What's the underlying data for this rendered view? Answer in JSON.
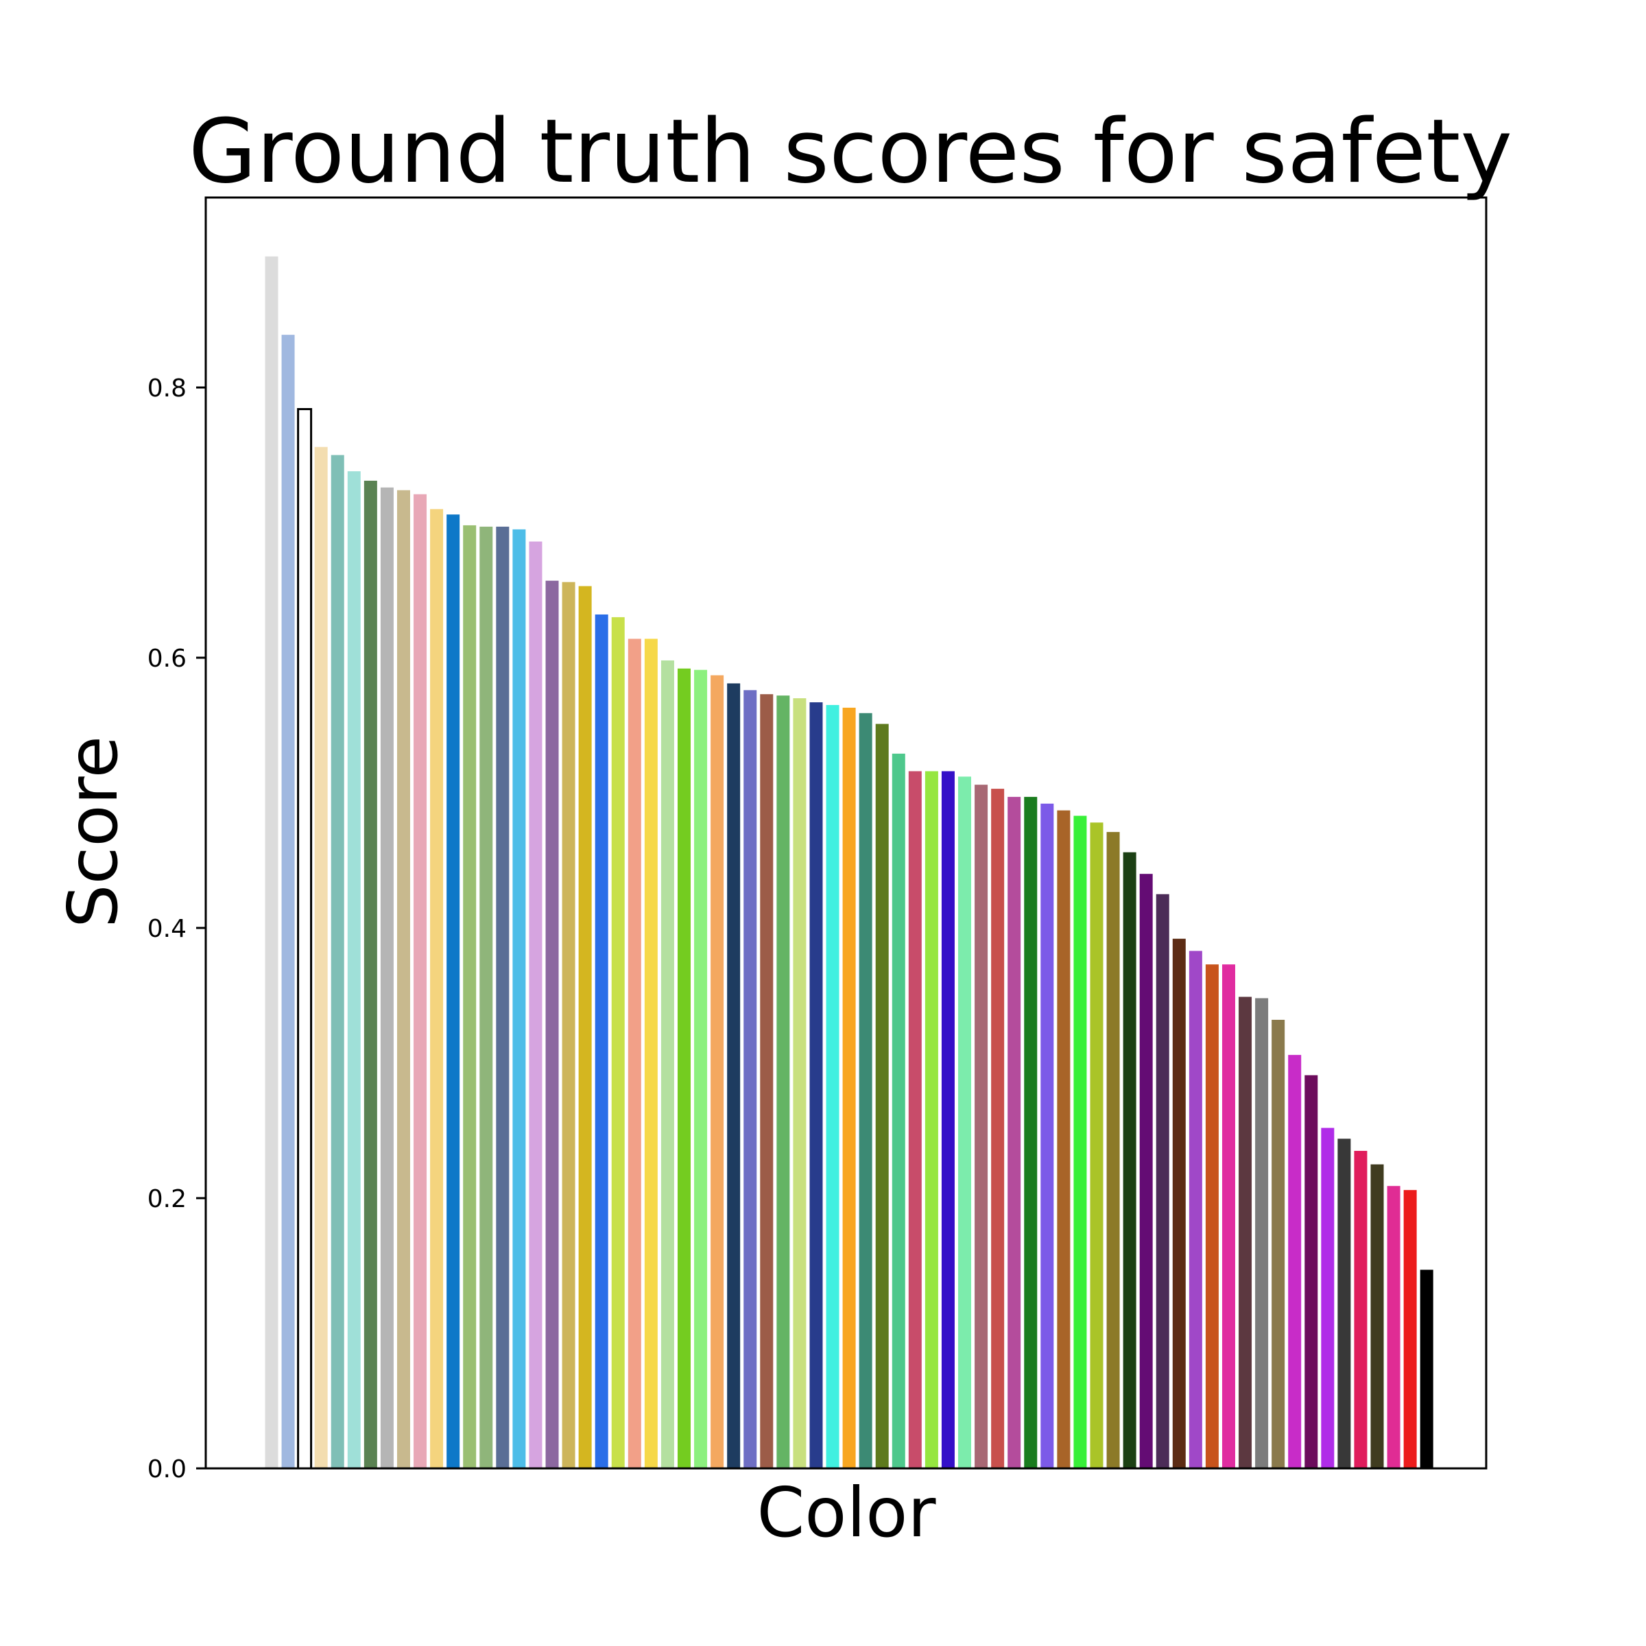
{
  "chart_data": {
    "type": "bar",
    "title": "Ground truth scores for safety",
    "xlabel": "Color",
    "ylabel": "Score",
    "ylim": [
      0,
      0.94
    ],
    "yticks": [
      "0.0",
      "0.2",
      "0.4",
      "0.6",
      "0.8"
    ],
    "grid": false,
    "legend": "none",
    "values": [
      0.897,
      0.839,
      0.784,
      0.756,
      0.75,
      0.738,
      0.731,
      0.726,
      0.724,
      0.721,
      0.71,
      0.706,
      0.698,
      0.697,
      0.697,
      0.695,
      0.686,
      0.657,
      0.656,
      0.653,
      0.632,
      0.63,
      0.614,
      0.614,
      0.598,
      0.592,
      0.591,
      0.587,
      0.581,
      0.576,
      0.573,
      0.572,
      0.57,
      0.567,
      0.565,
      0.563,
      0.559,
      0.551,
      0.529,
      0.516,
      0.516,
      0.516,
      0.512,
      0.506,
      0.503,
      0.497,
      0.497,
      0.492,
      0.487,
      0.483,
      0.478,
      0.471,
      0.456,
      0.44,
      0.425,
      0.392,
      0.383,
      0.373,
      0.373,
      0.349,
      0.348,
      0.332,
      0.306,
      0.291,
      0.252,
      0.244,
      0.235,
      0.225,
      0.209,
      0.206,
      0.147
    ],
    "colors": [
      "#dcdcdc",
      "#a0b8e0",
      "#ffffff",
      "#f3ddb0",
      "#7fbfb6",
      "#9fe0d8",
      "#5a8252",
      "#b5b5b5",
      "#c8b98e",
      "#e8a8b6",
      "#f4d47e",
      "#0e78c8",
      "#9abf72",
      "#8fb57a",
      "#5a6e96",
      "#4dbde8",
      "#d6a4e0",
      "#8c68a0",
      "#cdb55a",
      "#d4b620",
      "#2a6ee8",
      "#c8e04a",
      "#f2a088",
      "#f6d848",
      "#b4e0a0",
      "#74cc20",
      "#8cf07e",
      "#f4a860",
      "#1e3c60",
      "#6e6ec4",
      "#9c5c48",
      "#64b464",
      "#c8e07e",
      "#283c8c",
      "#40f0e0",
      "#f8a620",
      "#3c8a74",
      "#5e7a1e",
      "#4ec88c",
      "#c84c6a",
      "#96e640",
      "#3410c8",
      "#7cecac",
      "#a86874",
      "#c8504c",
      "#b44c9c",
      "#1a7c1e",
      "#7c5ae8",
      "#a86428",
      "#38f038",
      "#aac428",
      "#8c7a28",
      "#1c4014",
      "#640c74",
      "#4c2c58",
      "#5c2c14",
      "#a048c8",
      "#c8541c",
      "#e02ca0",
      "#5c3840",
      "#7c7c7c",
      "#8a7a4c",
      "#c82cc8",
      "#6c0c5c",
      "#b02ce8",
      "#383838",
      "#e01c5c",
      "#403c20",
      "#e02c94",
      "#ec1c1c",
      "#000000"
    ],
    "outlined_index": 2
  }
}
